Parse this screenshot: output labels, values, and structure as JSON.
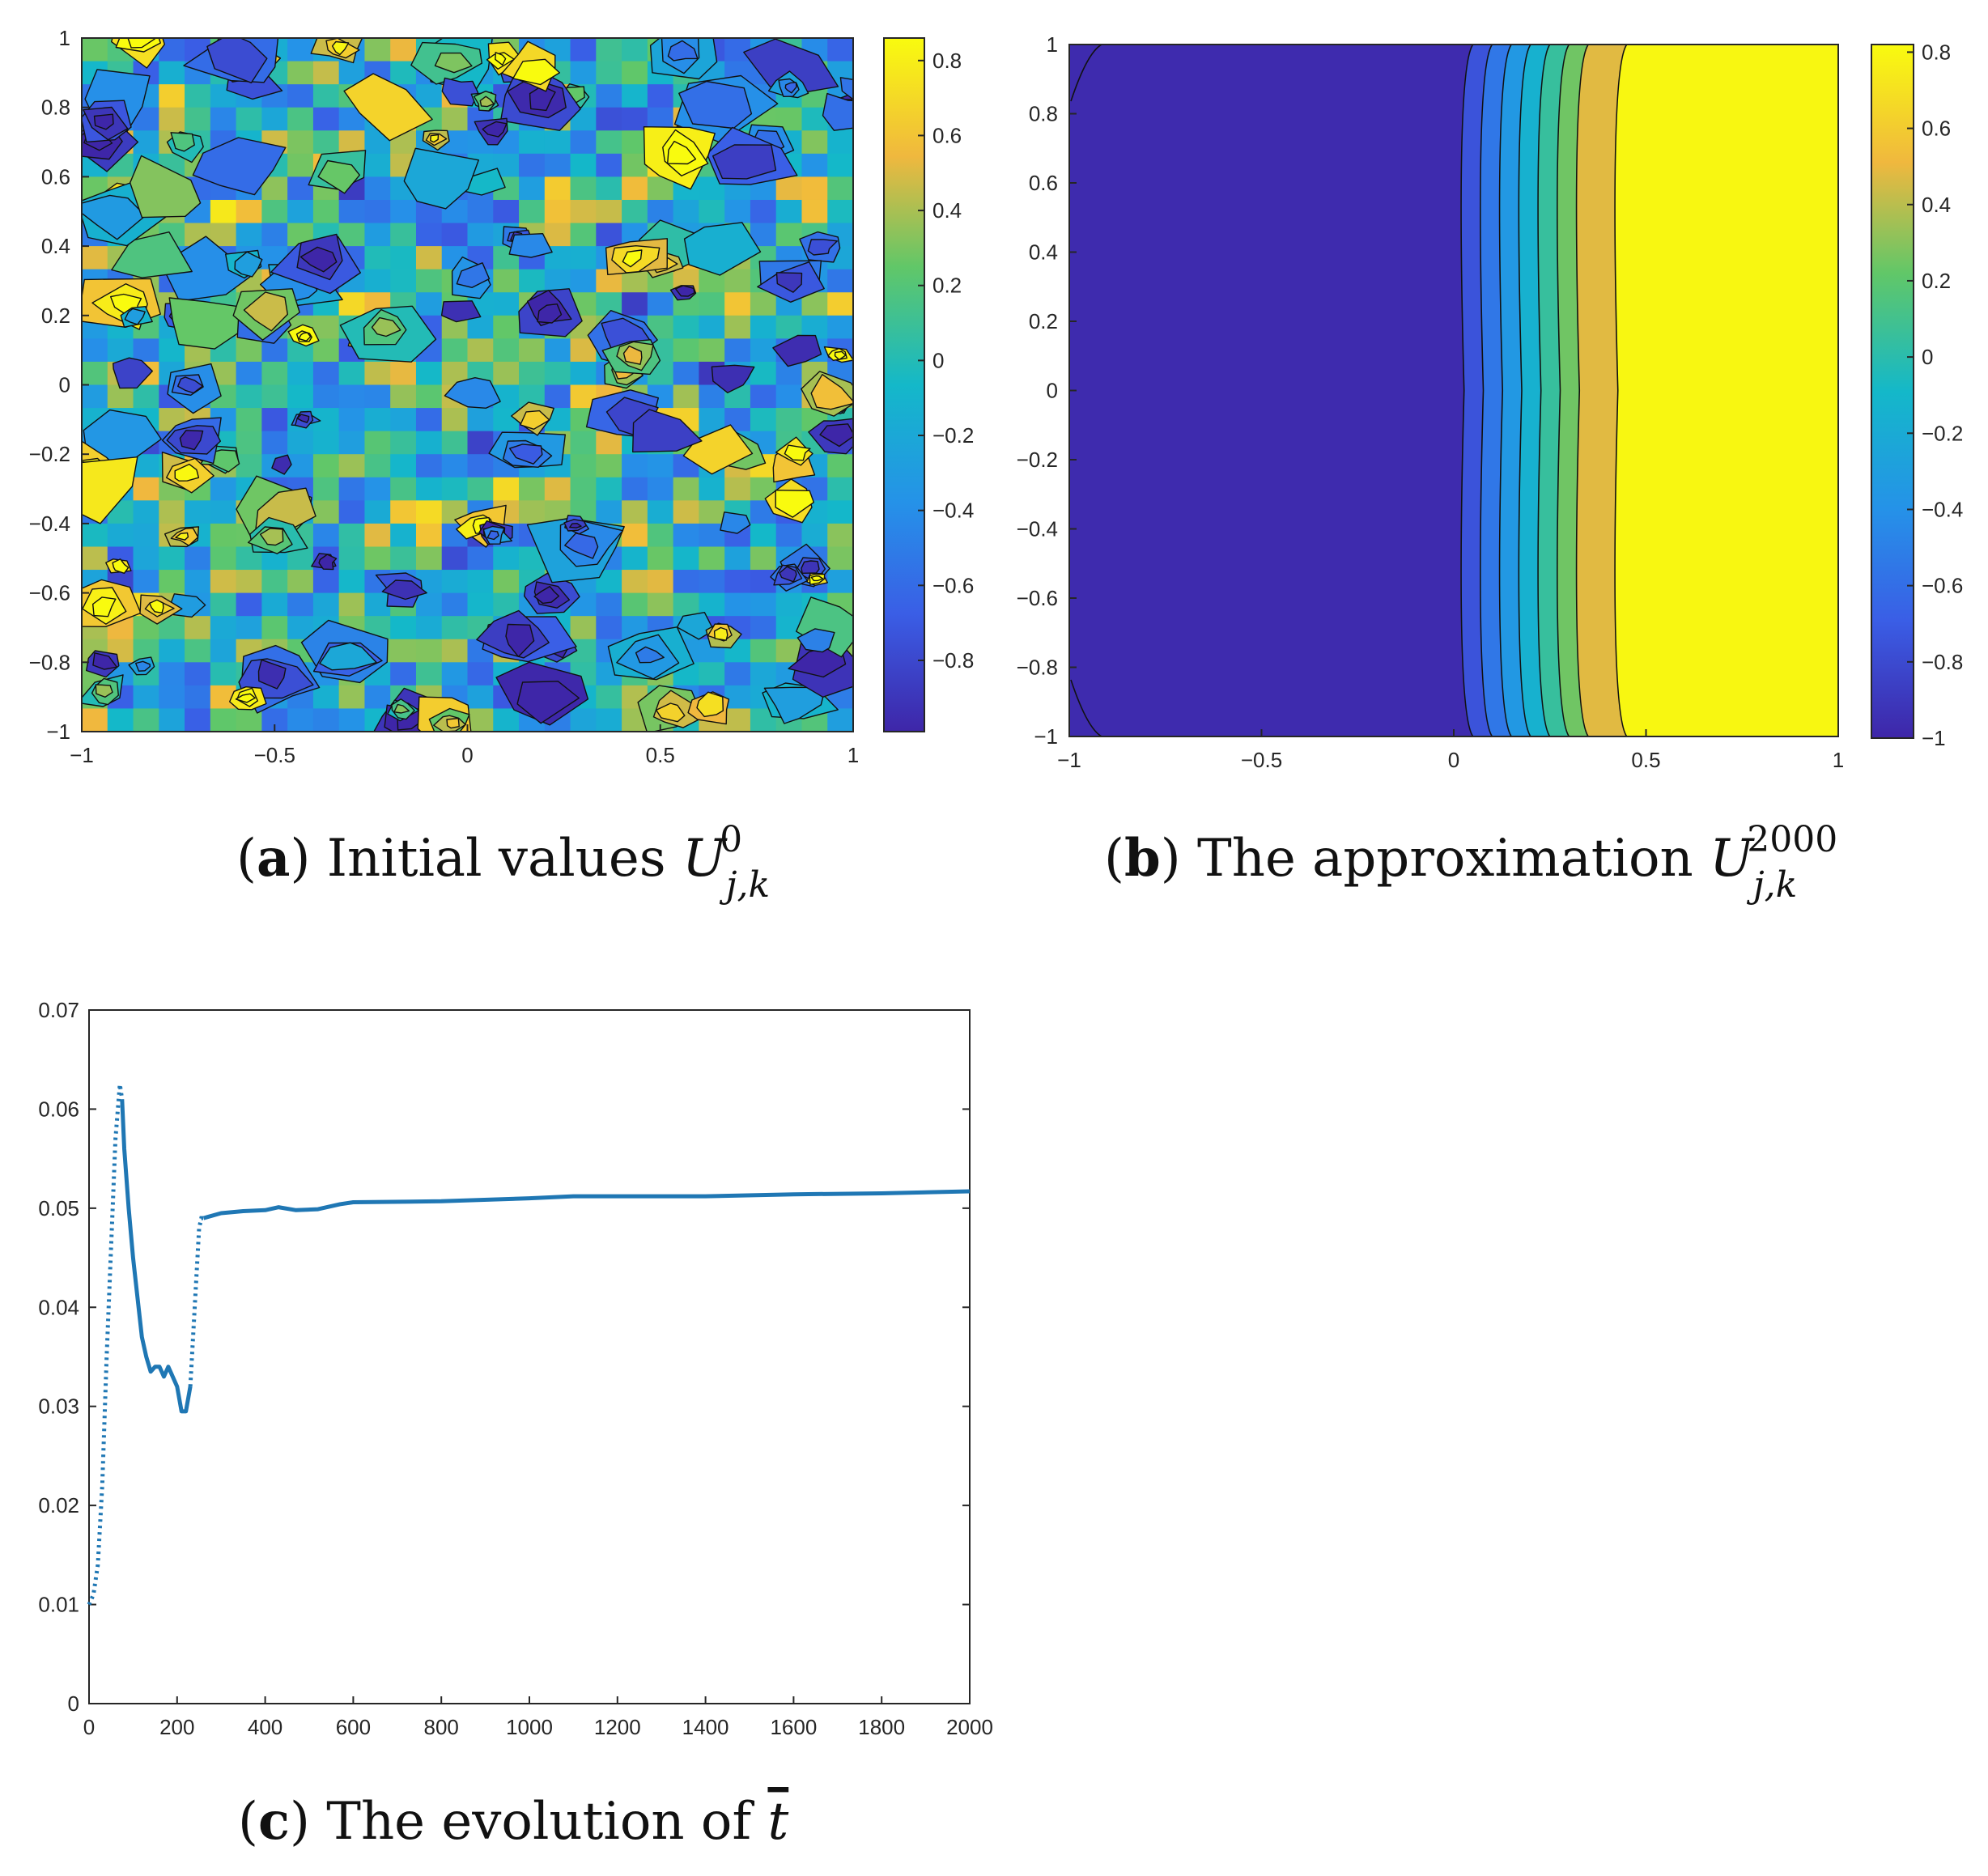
{
  "chart_data": [
    {
      "id": "a",
      "type": "heatmap",
      "subtype": "filled-contour",
      "caption": {
        "label": "a",
        "text": "Initial values",
        "symbol": "U",
        "sub": "j,k",
        "sup": "0"
      },
      "xlim": [
        -1,
        1
      ],
      "ylim": [
        -1,
        1
      ],
      "clim": [
        -0.99,
        0.86
      ],
      "xticks": [
        -1,
        -0.5,
        0,
        0.5,
        1
      ],
      "xtick_labels": [
        "−1",
        "−0.5",
        "0",
        "0.5",
        "1"
      ],
      "yticks": [
        1,
        0.8,
        0.6,
        0.4,
        0.2,
        0,
        -0.2,
        -0.4,
        -0.6,
        -0.8,
        -1
      ],
      "ytick_labels": [
        "1",
        "0.8",
        "0.6",
        "0.4",
        "0.2",
        "0",
        "−0.2",
        "−0.4",
        "−0.6",
        "−0.8",
        "−1"
      ],
      "colorbar_ticks": [
        0.8,
        0.6,
        0.4,
        0.2,
        0,
        -0.2,
        -0.4,
        -0.6,
        -0.8
      ],
      "colorbar_labels": [
        "0.8",
        "0.6",
        "0.4",
        "0.2",
        "0",
        "−0.2",
        "−0.4",
        "−0.6",
        "−0.8"
      ],
      "description": "random initial field with values uniformly scattered in [-1, 1]"
    },
    {
      "id": "b",
      "type": "heatmap",
      "subtype": "filled-contour",
      "caption": {
        "label": "b",
        "text": "The approximation",
        "symbol": "U",
        "sub": "j,k",
        "sup": "2000"
      },
      "xlim": [
        -1,
        1
      ],
      "ylim": [
        -1,
        1
      ],
      "clim": [
        -1,
        0.82
      ],
      "xticks": [
        -1,
        -0.5,
        0,
        0.5,
        1
      ],
      "xtick_labels": [
        "−1",
        "−0.5",
        "0",
        "0.5",
        "1"
      ],
      "yticks": [
        1,
        0.8,
        0.6,
        0.4,
        0.2,
        0,
        -0.2,
        -0.4,
        -0.6,
        -0.8,
        -1
      ],
      "ytick_labels": [
        "1",
        "0.8",
        "0.6",
        "0.4",
        "0.2",
        "0",
        "−0.2",
        "−0.4",
        "−0.6",
        "−0.8",
        "−1"
      ],
      "colorbar_ticks": [
        0.8,
        0.6,
        0.4,
        0.2,
        0,
        -0.2,
        -0.4,
        -0.6,
        -0.8,
        -1
      ],
      "colorbar_labels": [
        "0.8",
        "0.6",
        "0.4",
        "0.2",
        "0",
        "−0.2",
        "−0.4",
        "−0.6",
        "−0.8",
        "−1"
      ],
      "bands": [
        {
          "x0": -1.0,
          "x1": 0.05,
          "value": -0.97
        },
        {
          "x0": 0.05,
          "x1": 0.1,
          "value": -0.75
        },
        {
          "x0": 0.1,
          "x1": 0.15,
          "value": -0.55
        },
        {
          "x0": 0.15,
          "x1": 0.2,
          "value": -0.35
        },
        {
          "x0": 0.2,
          "x1": 0.25,
          "value": -0.15
        },
        {
          "x0": 0.25,
          "x1": 0.3,
          "value": 0.05
        },
        {
          "x0": 0.3,
          "x1": 0.35,
          "value": 0.25
        },
        {
          "x0": 0.35,
          "x1": 0.45,
          "value": 0.48
        },
        {
          "x0": 0.45,
          "x1": 1.0,
          "value": 0.8
        }
      ]
    },
    {
      "id": "c",
      "type": "line",
      "caption": {
        "label": "c",
        "text": "The evolution of",
        "symbol": "t"
      },
      "xlim": [
        0,
        2000
      ],
      "ylim": [
        0,
        0.07
      ],
      "xticks": [
        0,
        200,
        400,
        600,
        800,
        1000,
        1200,
        1400,
        1600,
        1800,
        2000
      ],
      "yticks": [
        0,
        0.01,
        0.02,
        0.03,
        0.04,
        0.05,
        0.06,
        0.07
      ],
      "ytick_labels": [
        "0",
        "0.01",
        "0.02",
        "0.03",
        "0.04",
        "0.05",
        "0.06",
        "0.07"
      ],
      "series": [
        {
          "name": "tbar",
          "color": "#1f77b4",
          "x": [
            0,
            10,
            20,
            30,
            40,
            50,
            60,
            70,
            75,
            80,
            90,
            100,
            110,
            120,
            130,
            140,
            150,
            160,
            170,
            180,
            190,
            200,
            210,
            220,
            230,
            240,
            250,
            255,
            260,
            300,
            350,
            400,
            430,
            470,
            520,
            570,
            600,
            800,
            1000,
            1100,
            1200,
            1400,
            1600,
            1800,
            2000
          ],
          "y": [
            0.01,
            0.011,
            0.014,
            0.022,
            0.035,
            0.046,
            0.057,
            0.0625,
            0.061,
            0.056,
            0.05,
            0.045,
            0.041,
            0.037,
            0.035,
            0.0335,
            0.034,
            0.034,
            0.033,
            0.034,
            0.033,
            0.032,
            0.0295,
            0.0295,
            0.032,
            0.04,
            0.048,
            0.049,
            0.049,
            0.0495,
            0.0497,
            0.0498,
            0.0501,
            0.0498,
            0.0499,
            0.0504,
            0.0506,
            0.0507,
            0.051,
            0.0512,
            0.0512,
            0.0512,
            0.0514,
            0.0515,
            0.0517
          ]
        }
      ]
    }
  ]
}
